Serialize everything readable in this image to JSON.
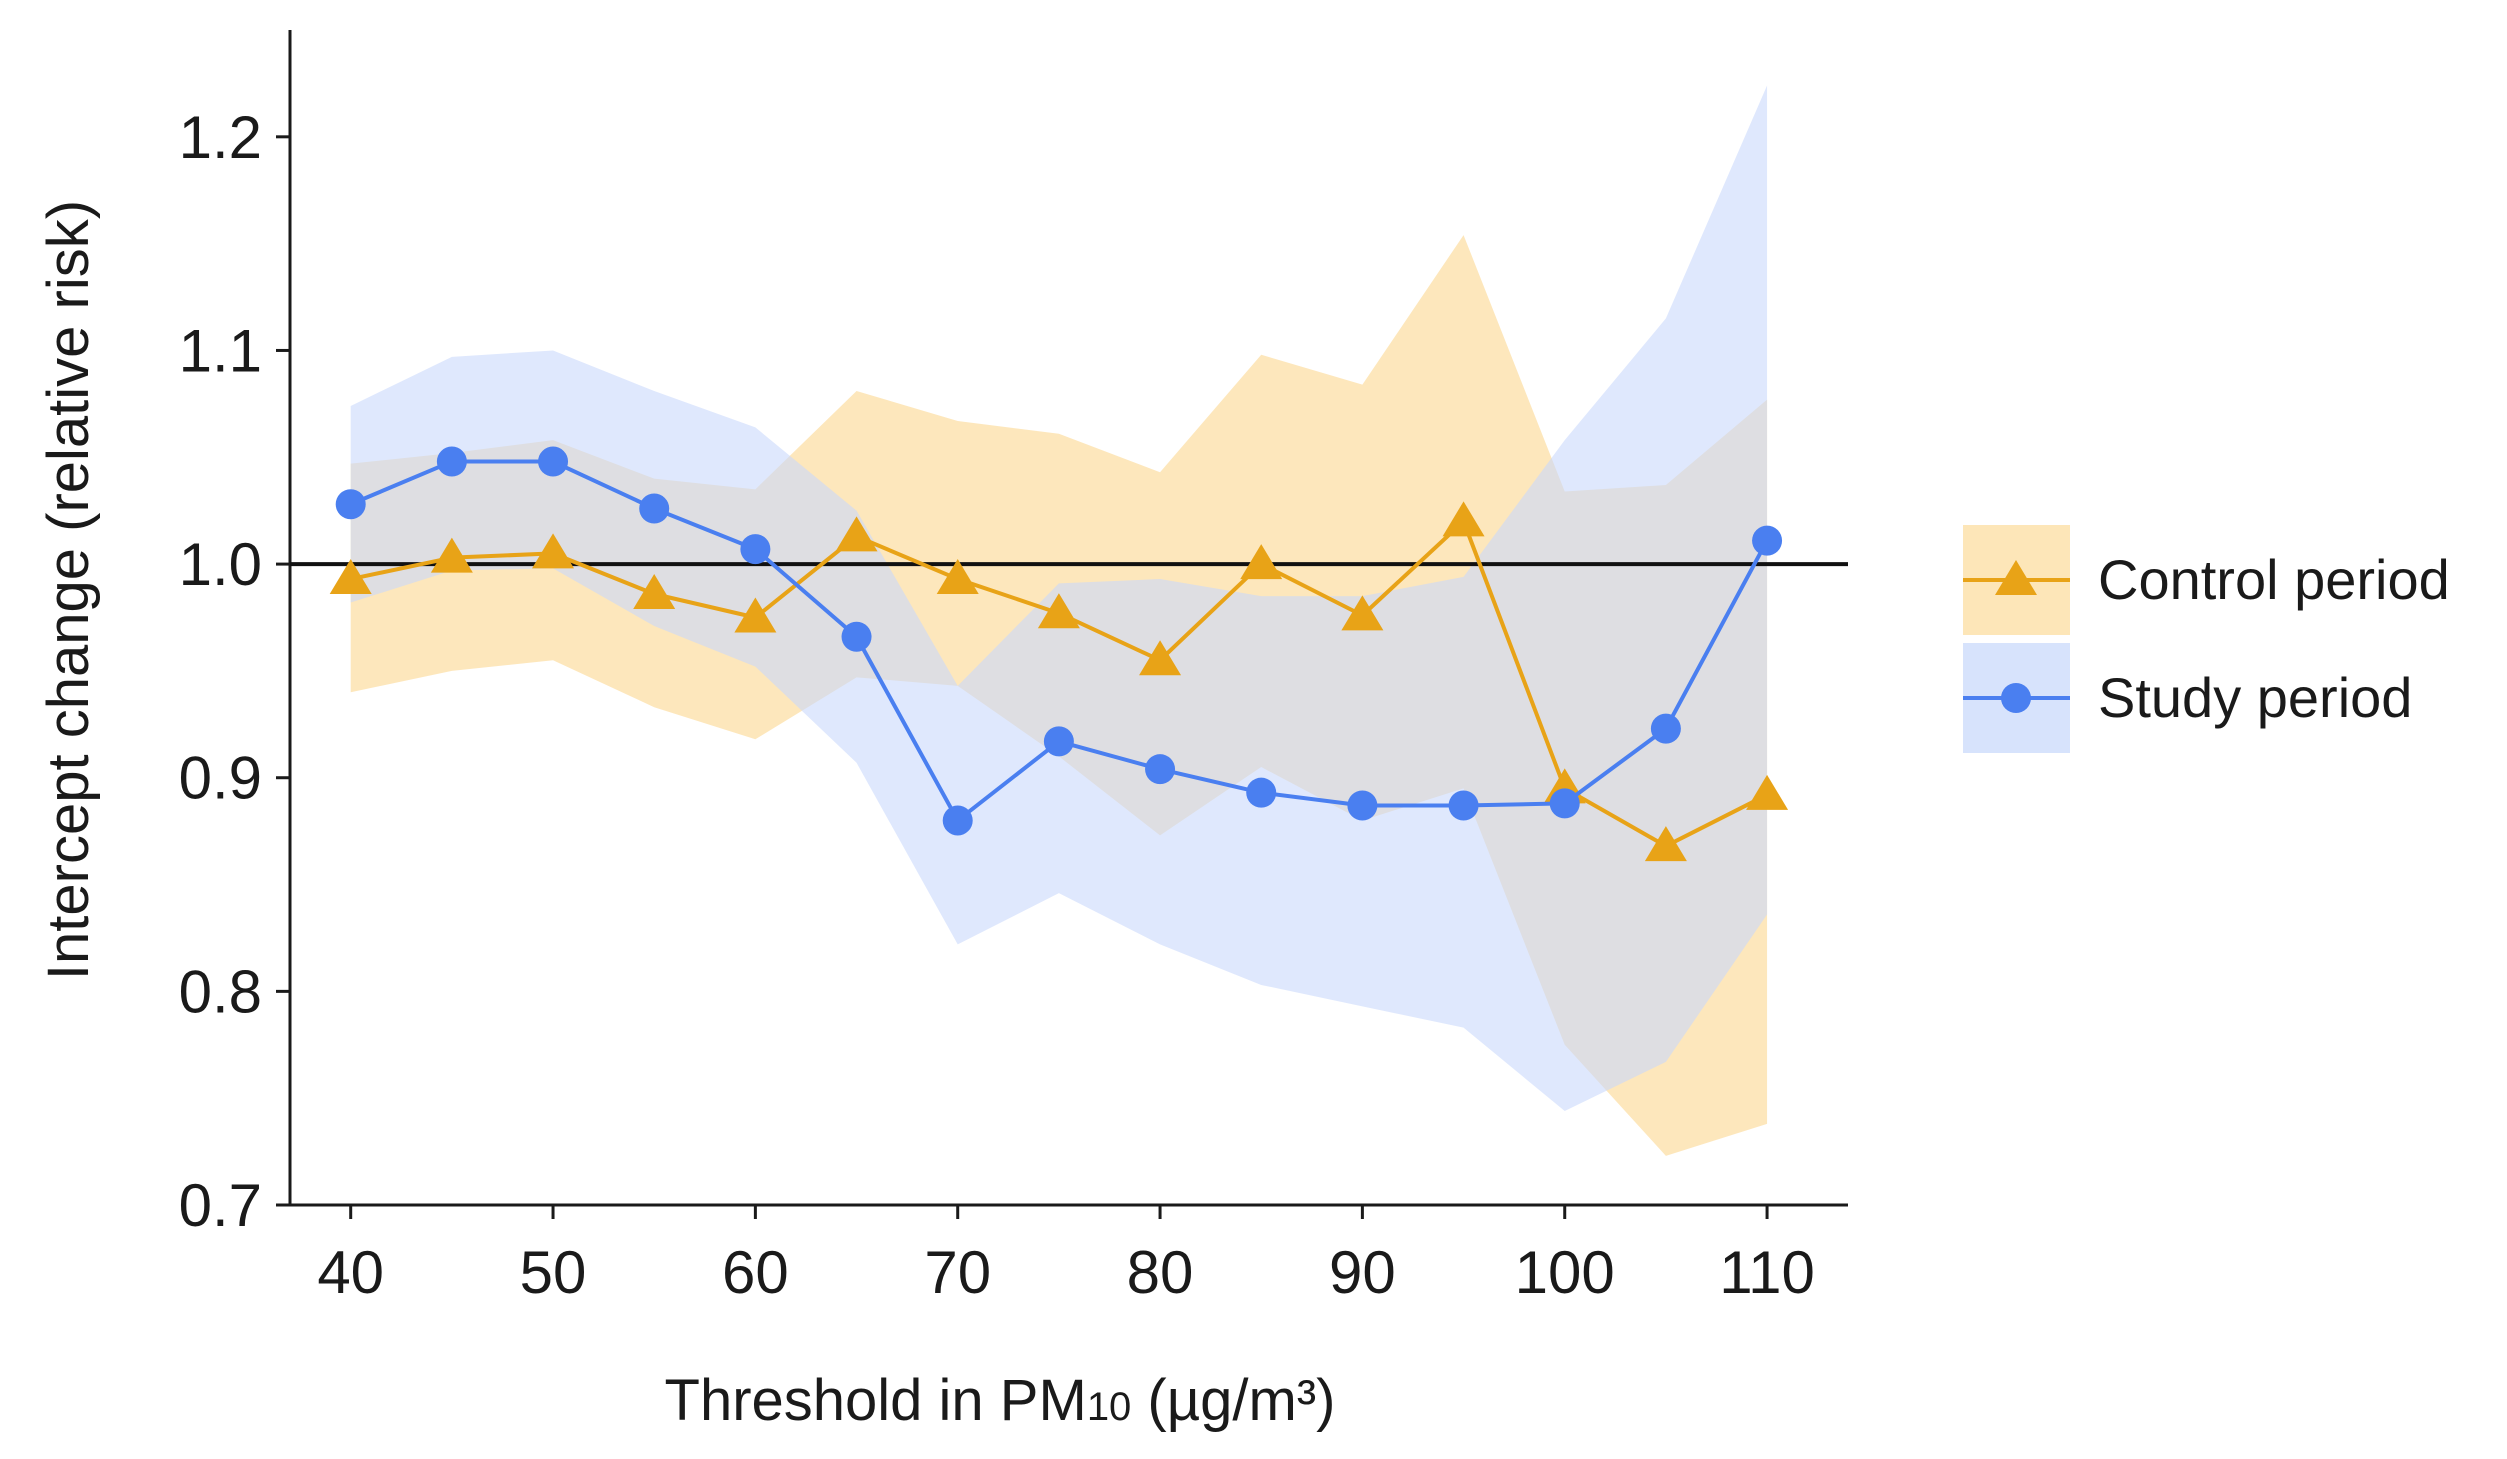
{
  "chart_data": {
    "type": "line",
    "title": "",
    "xlabel": "Threshold in PM",
    "xlabel_sub": "10",
    "xlabel_unit": " (µg/m³)",
    "ylabel": "Intercept change (relative risk)",
    "xlim": [
      37,
      114
    ],
    "ylim": [
      0.7,
      1.25
    ],
    "x_ticks": [
      40,
      50,
      60,
      70,
      80,
      90,
      100,
      110
    ],
    "y_ticks": [
      0.7,
      0.8,
      0.9,
      1.0,
      1.1,
      1.2
    ],
    "x_tick_labels": [
      "40",
      "50",
      "60",
      "70",
      "80",
      "90",
      "100",
      "110"
    ],
    "y_tick_labels": [
      "0.7",
      "0.8",
      "0.9",
      "1.0",
      "1.1",
      "1.2"
    ],
    "reference_line": 1.0,
    "grid": false,
    "legend_position": "right",
    "x": [
      40,
      45,
      50,
      55,
      60,
      65,
      70,
      75,
      80,
      85,
      90,
      95,
      100,
      105,
      110
    ],
    "series": [
      {
        "name": "Control period",
        "marker": "triangle",
        "color": "#e8a317",
        "band_color": "#fde3b0",
        "values": [
          0.993,
          1.003,
          1.005,
          0.986,
          0.975,
          1.013,
          0.993,
          0.977,
          0.955,
          1.0,
          0.976,
          1.02,
          0.895,
          0.868,
          0.892
        ],
        "lower": [
          0.94,
          0.95,
          0.955,
          0.933,
          0.918,
          0.947,
          0.943,
          0.91,
          0.873,
          0.905,
          0.88,
          0.895,
          0.775,
          0.723,
          0.738
        ],
        "upper": [
          1.047,
          1.052,
          1.058,
          1.04,
          1.035,
          1.081,
          1.067,
          1.061,
          1.043,
          1.098,
          1.084,
          1.154,
          1.034,
          1.037,
          1.077
        ]
      },
      {
        "name": "Study period",
        "marker": "circle",
        "color": "#4a7ff0",
        "band_color": "#c9d9fb",
        "values": [
          1.028,
          1.048,
          1.048,
          1.026,
          1.007,
          0.966,
          0.88,
          0.917,
          0.904,
          0.893,
          0.887,
          0.887,
          0.888,
          0.923,
          1.011
        ],
        "lower": [
          0.982,
          0.997,
          0.998,
          0.971,
          0.952,
          0.907,
          0.822,
          0.846,
          0.822,
          0.803,
          0.793,
          0.783,
          0.744,
          0.767,
          0.836
        ],
        "upper": [
          1.074,
          1.097,
          1.1,
          1.081,
          1.064,
          1.025,
          0.943,
          0.991,
          0.993,
          0.985,
          0.985,
          0.994,
          1.058,
          1.115,
          1.224
        ]
      }
    ]
  }
}
